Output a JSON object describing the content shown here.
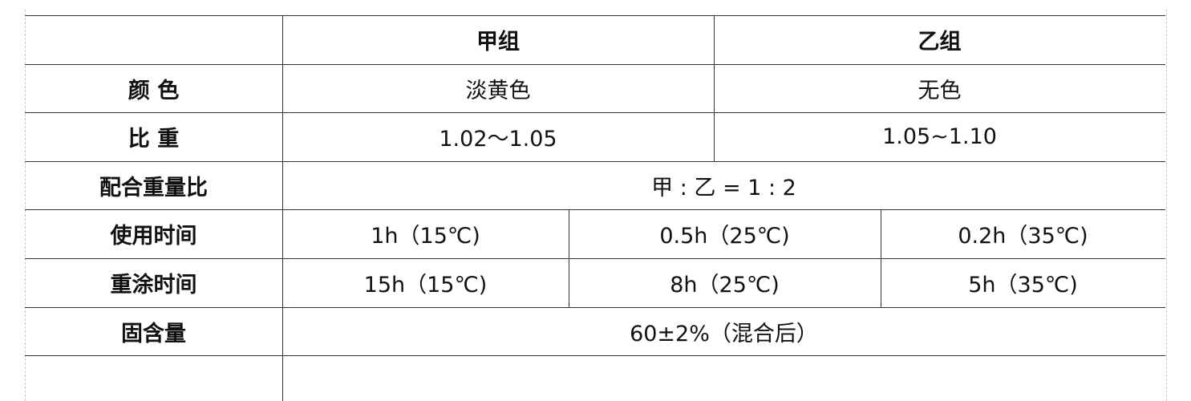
{
  "table": {
    "header": {
      "col_a": "甲组",
      "col_b": "乙组"
    },
    "rows": [
      {
        "label": "颜 色",
        "a": "淡黄色",
        "b": "无色"
      },
      {
        "label": "比 重",
        "a": "1.02～1.05",
        "b": "1.05~1.10"
      },
      {
        "label": "配合重量比",
        "merged": "甲 : 乙 = 1 : 2"
      },
      {
        "label": "使用时间",
        "c1": "1h（15℃)",
        "c2": "0.5h（25℃)",
        "c3": "0.2h（35℃)"
      },
      {
        "label": "重涂时间",
        "c1": "15h（15℃)",
        "c2": "8h（25℃)",
        "c3": "5h（35℃)"
      },
      {
        "label": "固含量",
        "merged": "60±2%（混合后）"
      },
      {
        "label": "",
        "merged": ""
      }
    ]
  }
}
